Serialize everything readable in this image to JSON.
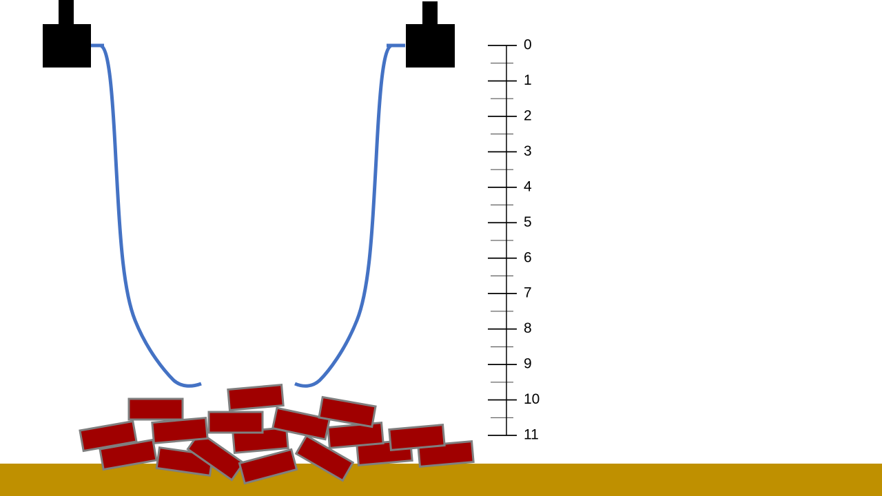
{
  "ruler": {
    "ticks": [
      0,
      1,
      2,
      3,
      4,
      5,
      6,
      7,
      8,
      9,
      10,
      11
    ]
  }
}
